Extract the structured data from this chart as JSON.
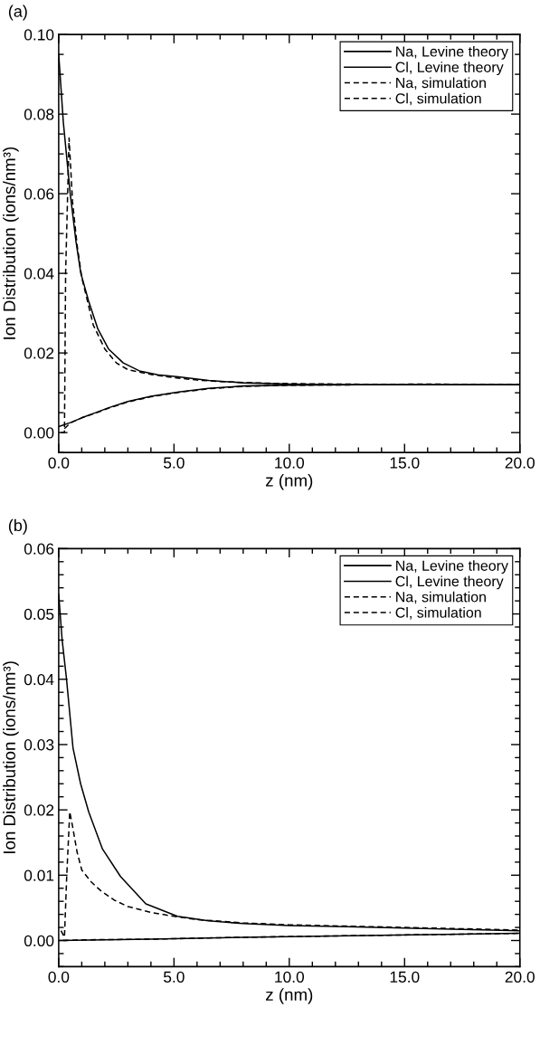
{
  "chart_data": [
    {
      "type": "line",
      "title": "(a)",
      "xlabel": "z (nm)",
      "ylabel": "Ion Distribution (ions/nm³)",
      "legend": "top right",
      "grid": false,
      "marker": "none",
      "xlim": [
        0,
        20
      ],
      "ylim": [
        -0.005,
        0.1
      ],
      "xticks": [
        {
          "value": 0,
          "label": "0.0"
        },
        {
          "value": 1,
          "label": null
        },
        {
          "value": 2,
          "label": null
        },
        {
          "value": 3,
          "label": null
        },
        {
          "value": 4,
          "label": null
        },
        {
          "value": 5,
          "label": "5.0"
        },
        {
          "value": 6,
          "label": null
        },
        {
          "value": 7,
          "label": null
        },
        {
          "value": 8,
          "label": null
        },
        {
          "value": 9,
          "label": null
        },
        {
          "value": 10,
          "label": "10.0"
        },
        {
          "value": 11,
          "label": null
        },
        {
          "value": 12,
          "label": null
        },
        {
          "value": 13,
          "label": null
        },
        {
          "value": 14,
          "label": null
        },
        {
          "value": 15,
          "label": "15.0"
        },
        {
          "value": 16,
          "label": null
        },
        {
          "value": 17,
          "label": null
        },
        {
          "value": 18,
          "label": null
        },
        {
          "value": 19,
          "label": null
        },
        {
          "value": 20,
          "label": "20.0"
        }
      ],
      "yticks": [
        {
          "value": -0.005,
          "label": null
        },
        {
          "value": 0,
          "label": "0.00"
        },
        {
          "value": 0.005,
          "label": null
        },
        {
          "value": 0.01,
          "label": null
        },
        {
          "value": 0.015,
          "label": null
        },
        {
          "value": 0.02,
          "label": "0.02"
        },
        {
          "value": 0.025,
          "label": null
        },
        {
          "value": 0.03,
          "label": null
        },
        {
          "value": 0.035,
          "label": null
        },
        {
          "value": 0.04,
          "label": "0.04"
        },
        {
          "value": 0.045,
          "label": null
        },
        {
          "value": 0.05,
          "label": null
        },
        {
          "value": 0.055,
          "label": null
        },
        {
          "value": 0.06,
          "label": "0.06"
        },
        {
          "value": 0.065,
          "label": null
        },
        {
          "value": 0.07,
          "label": null
        },
        {
          "value": 0.075,
          "label": null
        },
        {
          "value": 0.08,
          "label": "0.08"
        },
        {
          "value": 0.085,
          "label": null
        },
        {
          "value": 0.09,
          "label": null
        },
        {
          "value": 0.095,
          "label": null
        },
        {
          "value": 0.1,
          "label": "0.10"
        }
      ],
      "series": [
        {
          "name": "Na, Levine theory",
          "color": "#000000",
          "line_style": "solid",
          "x": [
            0,
            0.2,
            0.5,
            0.75,
            0.96,
            1.3,
            1.7,
            2.16,
            2.8,
            3.5,
            4.3,
            5.2,
            6.5,
            8,
            10,
            13,
            16,
            20
          ],
          "values": [
            0.095,
            0.078,
            0.06,
            0.048,
            0.04,
            0.033,
            0.026,
            0.021,
            0.0175,
            0.0155,
            0.0145,
            0.014,
            0.0131,
            0.0125,
            0.0122,
            0.012,
            0.012,
            0.012
          ]
        },
        {
          "name": "Cl, Levine theory",
          "color": "#000000",
          "line_style": "solid",
          "x": [
            0,
            0.5,
            1,
            1.6,
            2.2,
            3,
            4,
            5.2,
            6.5,
            8,
            10,
            13,
            16,
            20
          ],
          "values": [
            0.0015,
            0.0025,
            0.0037,
            0.005,
            0.0063,
            0.0078,
            0.0091,
            0.0102,
            0.0111,
            0.0117,
            0.0119,
            0.012,
            0.012,
            0.012
          ]
        },
        {
          "name": "Na, simulation",
          "color": "#000000",
          "line_style": "dashed",
          "x": [
            0.1,
            0.25,
            0.3,
            0.45,
            0.6,
            0.8,
            1,
            1.5,
            2,
            2.5,
            3,
            4,
            5,
            6,
            7,
            8,
            9,
            10,
            12,
            14,
            16,
            18,
            20
          ],
          "values": [
            0,
            0,
            0.04,
            0.074,
            0.058,
            0.047,
            0.039,
            0.027,
            0.021,
            0.0175,
            0.0158,
            0.0146,
            0.0138,
            0.0132,
            0.0128,
            0.0126,
            0.0124,
            0.0123,
            0.0122,
            0.0121,
            0.0122,
            0.0121,
            0.012
          ]
        },
        {
          "name": "Cl, simulation",
          "color": "#000000",
          "line_style": "dashed",
          "x": [
            0.25,
            0.5,
            1,
            1.6,
            2.2,
            3,
            4,
            5.2,
            6.5,
            8,
            10,
            13,
            16,
            20
          ],
          "values": [
            0.001,
            0.0024,
            0.0037,
            0.0049,
            0.0062,
            0.0077,
            0.009,
            0.0101,
            0.011,
            0.0116,
            0.0119,
            0.012,
            0.012,
            0.012
          ]
        }
      ]
    },
    {
      "type": "line",
      "title": "(b)",
      "xlabel": "z (nm)",
      "ylabel": "Ion Distribution (ions/nm³)",
      "legend": "top right",
      "grid": false,
      "marker": "none",
      "xlim": [
        0,
        20
      ],
      "ylim": [
        -0.004,
        0.06
      ],
      "xticks": [
        {
          "value": 0,
          "label": "0.0"
        },
        {
          "value": 1,
          "label": null
        },
        {
          "value": 2,
          "label": null
        },
        {
          "value": 3,
          "label": null
        },
        {
          "value": 4,
          "label": null
        },
        {
          "value": 5,
          "label": "5.0"
        },
        {
          "value": 6,
          "label": null
        },
        {
          "value": 7,
          "label": null
        },
        {
          "value": 8,
          "label": null
        },
        {
          "value": 9,
          "label": null
        },
        {
          "value": 10,
          "label": "10.0"
        },
        {
          "value": 11,
          "label": null
        },
        {
          "value": 12,
          "label": null
        },
        {
          "value": 13,
          "label": null
        },
        {
          "value": 14,
          "label": null
        },
        {
          "value": 15,
          "label": "15.0"
        },
        {
          "value": 16,
          "label": null
        },
        {
          "value": 17,
          "label": null
        },
        {
          "value": 18,
          "label": null
        },
        {
          "value": 19,
          "label": null
        },
        {
          "value": 20,
          "label": "20.0"
        }
      ],
      "yticks": [
        {
          "value": -0.004,
          "label": null
        },
        {
          "value": -0.002,
          "label": null
        },
        {
          "value": 0,
          "label": "0.00"
        },
        {
          "value": 0.002,
          "label": null
        },
        {
          "value": 0.004,
          "label": null
        },
        {
          "value": 0.006,
          "label": null
        },
        {
          "value": 0.008,
          "label": null
        },
        {
          "value": 0.01,
          "label": "0.01"
        },
        {
          "value": 0.012,
          "label": null
        },
        {
          "value": 0.014,
          "label": null
        },
        {
          "value": 0.016,
          "label": null
        },
        {
          "value": 0.018,
          "label": null
        },
        {
          "value": 0.02,
          "label": "0.02"
        },
        {
          "value": 0.022,
          "label": null
        },
        {
          "value": 0.024,
          "label": null
        },
        {
          "value": 0.026,
          "label": null
        },
        {
          "value": 0.028,
          "label": null
        },
        {
          "value": 0.03,
          "label": "0.03"
        },
        {
          "value": 0.032,
          "label": null
        },
        {
          "value": 0.034,
          "label": null
        },
        {
          "value": 0.036,
          "label": null
        },
        {
          "value": 0.038,
          "label": null
        },
        {
          "value": 0.04,
          "label": "0.04"
        },
        {
          "value": 0.042,
          "label": null
        },
        {
          "value": 0.044,
          "label": null
        },
        {
          "value": 0.046,
          "label": null
        },
        {
          "value": 0.048,
          "label": null
        },
        {
          "value": 0.05,
          "label": "0.05"
        },
        {
          "value": 0.052,
          "label": null
        },
        {
          "value": 0.054,
          "label": null
        },
        {
          "value": 0.056,
          "label": null
        },
        {
          "value": 0.058,
          "label": null
        },
        {
          "value": 0.06,
          "label": "0.06"
        }
      ],
      "series": [
        {
          "name": "Na, Levine theory",
          "color": "#000000",
          "line_style": "solid",
          "x": [
            0,
            4,
            8,
            12,
            16,
            20
          ],
          "values": [
            0,
            0.0002,
            0.0005,
            0.0007,
            0.0009,
            0.0011
          ]
        },
        {
          "name": "Cl, Levine theory",
          "color": "#000000",
          "line_style": "solid",
          "x": [
            0,
            0.15,
            0.34,
            0.62,
            0.95,
            1.3,
            1.9,
            2.68,
            3.78,
            5.15,
            6.5,
            8,
            10,
            12.5,
            15,
            17.5,
            20
          ],
          "values": [
            0.053,
            0.046,
            0.04,
            0.0295,
            0.024,
            0.0197,
            0.014,
            0.0098,
            0.0056,
            0.0037,
            0.003,
            0.0026,
            0.0023,
            0.0021,
            0.0019,
            0.0017,
            0.0015
          ]
        },
        {
          "name": "Na, simulation",
          "color": "#000000",
          "line_style": "dashed",
          "x": [
            0.2,
            1,
            4,
            8,
            12,
            16,
            20
          ],
          "values": [
            0,
            0.0001,
            0.0002,
            0.0005,
            0.0007,
            0.0009,
            0.0011
          ]
        },
        {
          "name": "Cl, simulation",
          "color": "#000000",
          "line_style": "dashed",
          "x": [
            0.1,
            0.25,
            0.35,
            0.48,
            0.6,
            0.8,
            1,
            1.4,
            1.8,
            2.4,
            3,
            4,
            5,
            6,
            8,
            10,
            12.5,
            15,
            17.5,
            20
          ],
          "values": [
            0.0015,
            0.0005,
            0.01,
            0.0197,
            0.0175,
            0.0135,
            0.0108,
            0.009,
            0.0077,
            0.0062,
            0.0052,
            0.0043,
            0.0037,
            0.0032,
            0.0027,
            0.0024,
            0.0022,
            0.002,
            0.0018,
            0.0016
          ]
        }
      ]
    }
  ]
}
